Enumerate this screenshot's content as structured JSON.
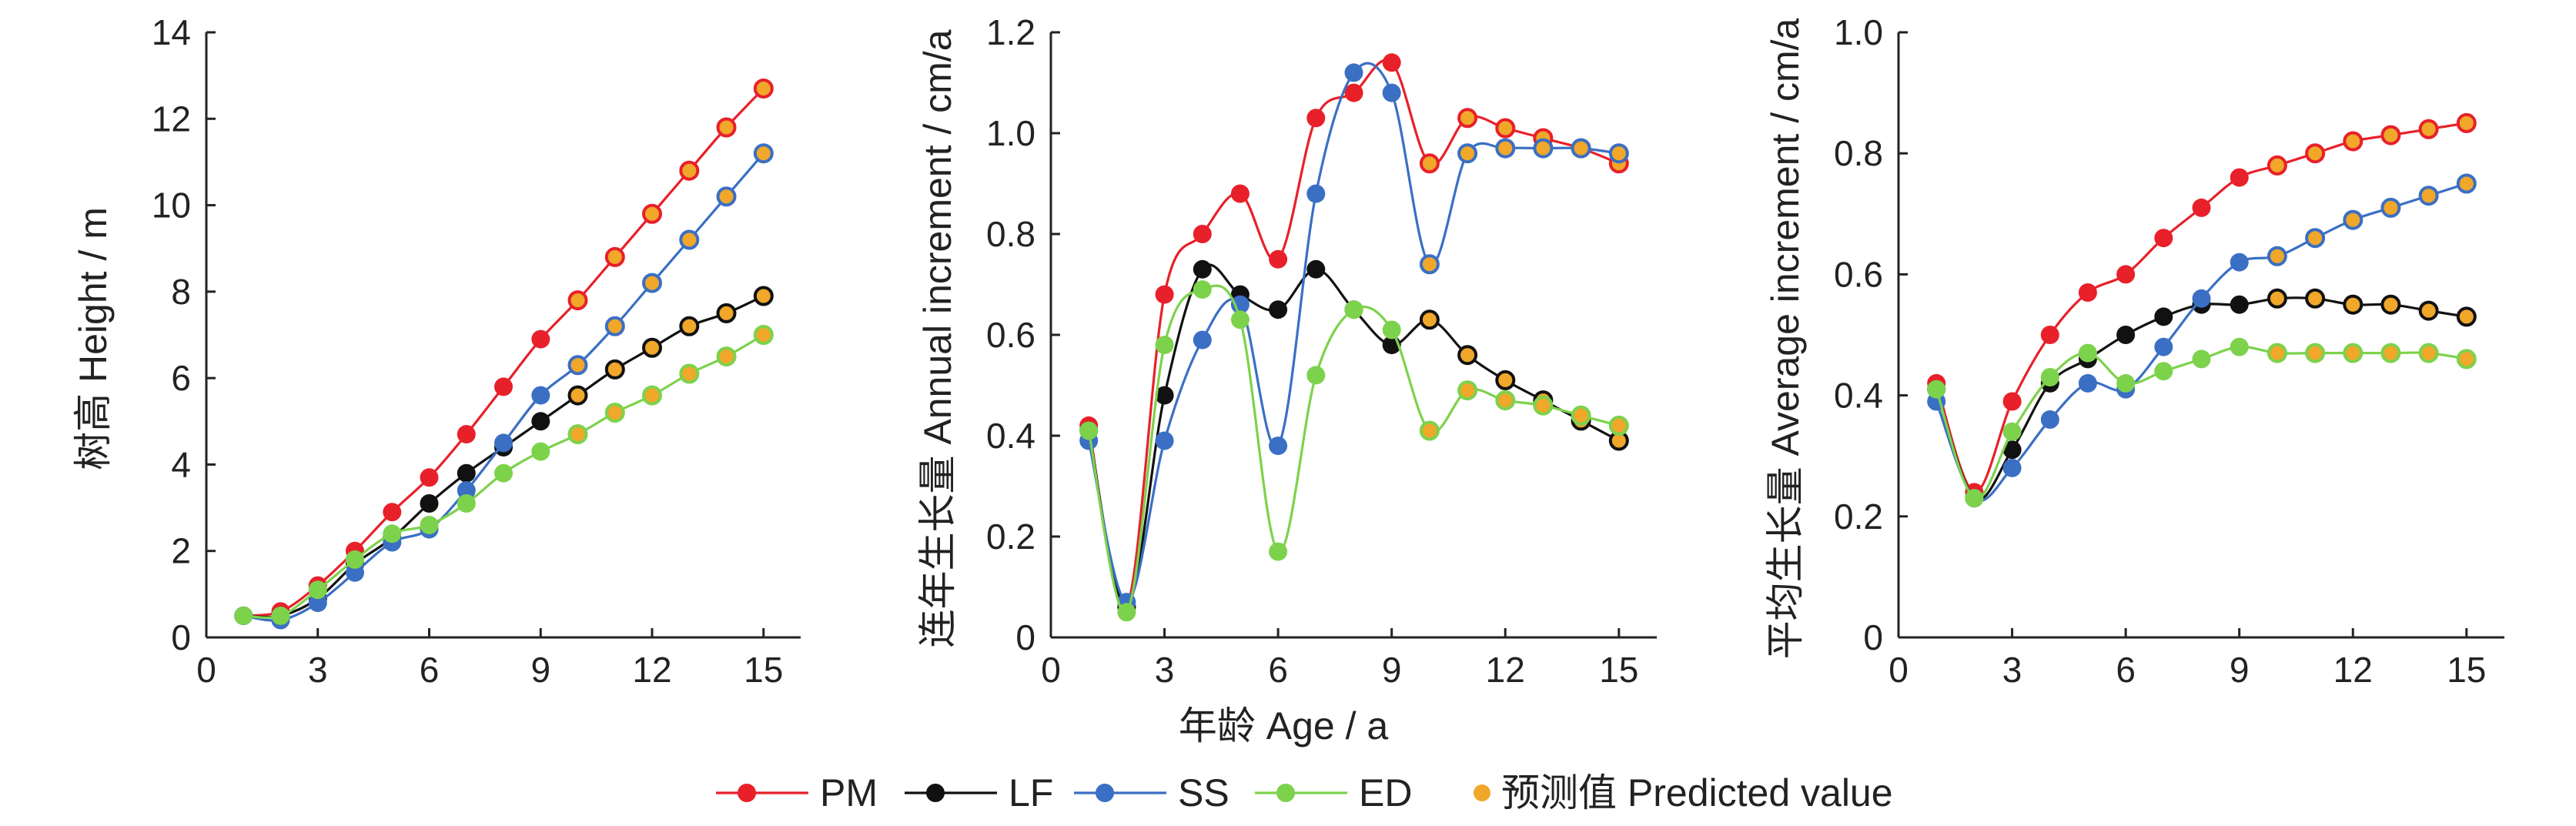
{
  "colors": {
    "PM": "#e8202a",
    "LF": "#111111",
    "SS": "#3a6fc4",
    "ED": "#7dd24c",
    "predicted": "#f0a72a"
  },
  "shared_xlabel": "年龄 Age / a",
  "legend": {
    "items": [
      {
        "key": "PM",
        "label": "PM"
      },
      {
        "key": "LF",
        "label": "LF"
      },
      {
        "key": "SS",
        "label": "SS"
      },
      {
        "key": "ED",
        "label": "ED"
      },
      {
        "key": "predicted",
        "label": "预测值 Predicted value"
      }
    ]
  },
  "chart_data": [
    {
      "type": "line",
      "ylabel": "树高 Height / m",
      "xlim": [
        0,
        16
      ],
      "ylim": [
        0,
        14
      ],
      "xticks": [
        0,
        3,
        6,
        9,
        12,
        15
      ],
      "yticks": [
        0,
        2,
        4,
        6,
        8,
        10,
        12,
        14
      ],
      "ytick_labels": [
        "0",
        "2",
        "4",
        "6",
        "8",
        "10",
        "12",
        "14"
      ],
      "x": [
        1,
        2,
        3,
        4,
        5,
        6,
        7,
        8,
        9,
        10,
        11,
        12,
        13,
        14,
        15
      ],
      "predicted_from_index": 9,
      "series": [
        {
          "name": "PM",
          "values": [
            0.5,
            0.6,
            1.2,
            2.0,
            2.9,
            3.7,
            4.7,
            5.8,
            6.9,
            7.8,
            8.8,
            9.8,
            10.8,
            11.8,
            12.7
          ]
        },
        {
          "name": "LF",
          "values": [
            0.5,
            0.5,
            0.9,
            1.7,
            2.3,
            3.1,
            3.8,
            4.4,
            5.0,
            5.6,
            6.2,
            6.7,
            7.2,
            7.5,
            7.9
          ]
        },
        {
          "name": "SS",
          "values": [
            0.5,
            0.4,
            0.8,
            1.5,
            2.2,
            2.5,
            3.4,
            4.5,
            5.6,
            6.3,
            7.2,
            8.2,
            9.2,
            10.2,
            11.2
          ]
        },
        {
          "name": "ED",
          "values": [
            0.5,
            0.5,
            1.1,
            1.8,
            2.4,
            2.6,
            3.1,
            3.8,
            4.3,
            4.7,
            5.2,
            5.6,
            6.1,
            6.5,
            7.0
          ]
        }
      ]
    },
    {
      "type": "line",
      "ylabel": "连年生长量 Annual increment / cm/a",
      "xlim": [
        0,
        16
      ],
      "ylim": [
        0,
        1.2
      ],
      "xticks": [
        0,
        3,
        6,
        9,
        12,
        15
      ],
      "yticks": [
        0,
        0.2,
        0.4,
        0.6,
        0.8,
        1.0,
        1.2
      ],
      "ytick_labels": [
        "0",
        "0.2",
        "0.4",
        "0.6",
        "0.8",
        "1.0",
        "1.2"
      ],
      "x": [
        1,
        2,
        3,
        4,
        5,
        6,
        7,
        8,
        9,
        10,
        11,
        12,
        13,
        14,
        15
      ],
      "predicted_from_index": 9,
      "series": [
        {
          "name": "PM",
          "values": [
            0.42,
            0.06,
            0.68,
            0.8,
            0.88,
            0.75,
            1.03,
            1.08,
            1.14,
            0.94,
            1.03,
            1.01,
            0.99,
            0.97,
            0.94
          ]
        },
        {
          "name": "LF",
          "values": [
            0.41,
            0.06,
            0.48,
            0.73,
            0.68,
            0.65,
            0.73,
            0.65,
            0.58,
            0.63,
            0.56,
            0.51,
            0.47,
            0.43,
            0.39
          ]
        },
        {
          "name": "SS",
          "values": [
            0.39,
            0.07,
            0.39,
            0.59,
            0.66,
            0.38,
            0.88,
            1.12,
            1.08,
            0.74,
            0.96,
            0.97,
            0.97,
            0.97,
            0.96
          ]
        },
        {
          "name": "ED",
          "values": [
            0.41,
            0.05,
            0.58,
            0.69,
            0.63,
            0.17,
            0.52,
            0.65,
            0.61,
            0.41,
            0.49,
            0.47,
            0.46,
            0.44,
            0.42
          ]
        }
      ]
    },
    {
      "type": "line",
      "ylabel": "平均生长量 Average increment / cm/a",
      "xlim": [
        0,
        16
      ],
      "ylim": [
        0,
        1.0
      ],
      "xticks": [
        0,
        3,
        6,
        9,
        12,
        15
      ],
      "yticks": [
        0,
        0.2,
        0.4,
        0.6,
        0.8,
        1.0
      ],
      "ytick_labels": [
        "0",
        "0.2",
        "0.4",
        "0.6",
        "0.8",
        "1.0"
      ],
      "x": [
        1,
        2,
        3,
        4,
        5,
        6,
        7,
        8,
        9,
        10,
        11,
        12,
        13,
        14,
        15
      ],
      "predicted_from_index": 9,
      "series": [
        {
          "name": "PM",
          "values": [
            0.42,
            0.24,
            0.39,
            0.5,
            0.57,
            0.6,
            0.66,
            0.71,
            0.76,
            0.78,
            0.8,
            0.82,
            0.83,
            0.84,
            0.85
          ]
        },
        {
          "name": "LF",
          "values": [
            0.41,
            0.23,
            0.31,
            0.42,
            0.46,
            0.5,
            0.53,
            0.55,
            0.55,
            0.56,
            0.56,
            0.55,
            0.55,
            0.54,
            0.53
          ]
        },
        {
          "name": "SS",
          "values": [
            0.39,
            0.23,
            0.28,
            0.36,
            0.42,
            0.41,
            0.48,
            0.56,
            0.62,
            0.63,
            0.66,
            0.69,
            0.71,
            0.73,
            0.75
          ]
        },
        {
          "name": "ED",
          "values": [
            0.41,
            0.23,
            0.34,
            0.43,
            0.47,
            0.42,
            0.44,
            0.46,
            0.48,
            0.47,
            0.47,
            0.47,
            0.47,
            0.47,
            0.46
          ]
        }
      ]
    }
  ]
}
